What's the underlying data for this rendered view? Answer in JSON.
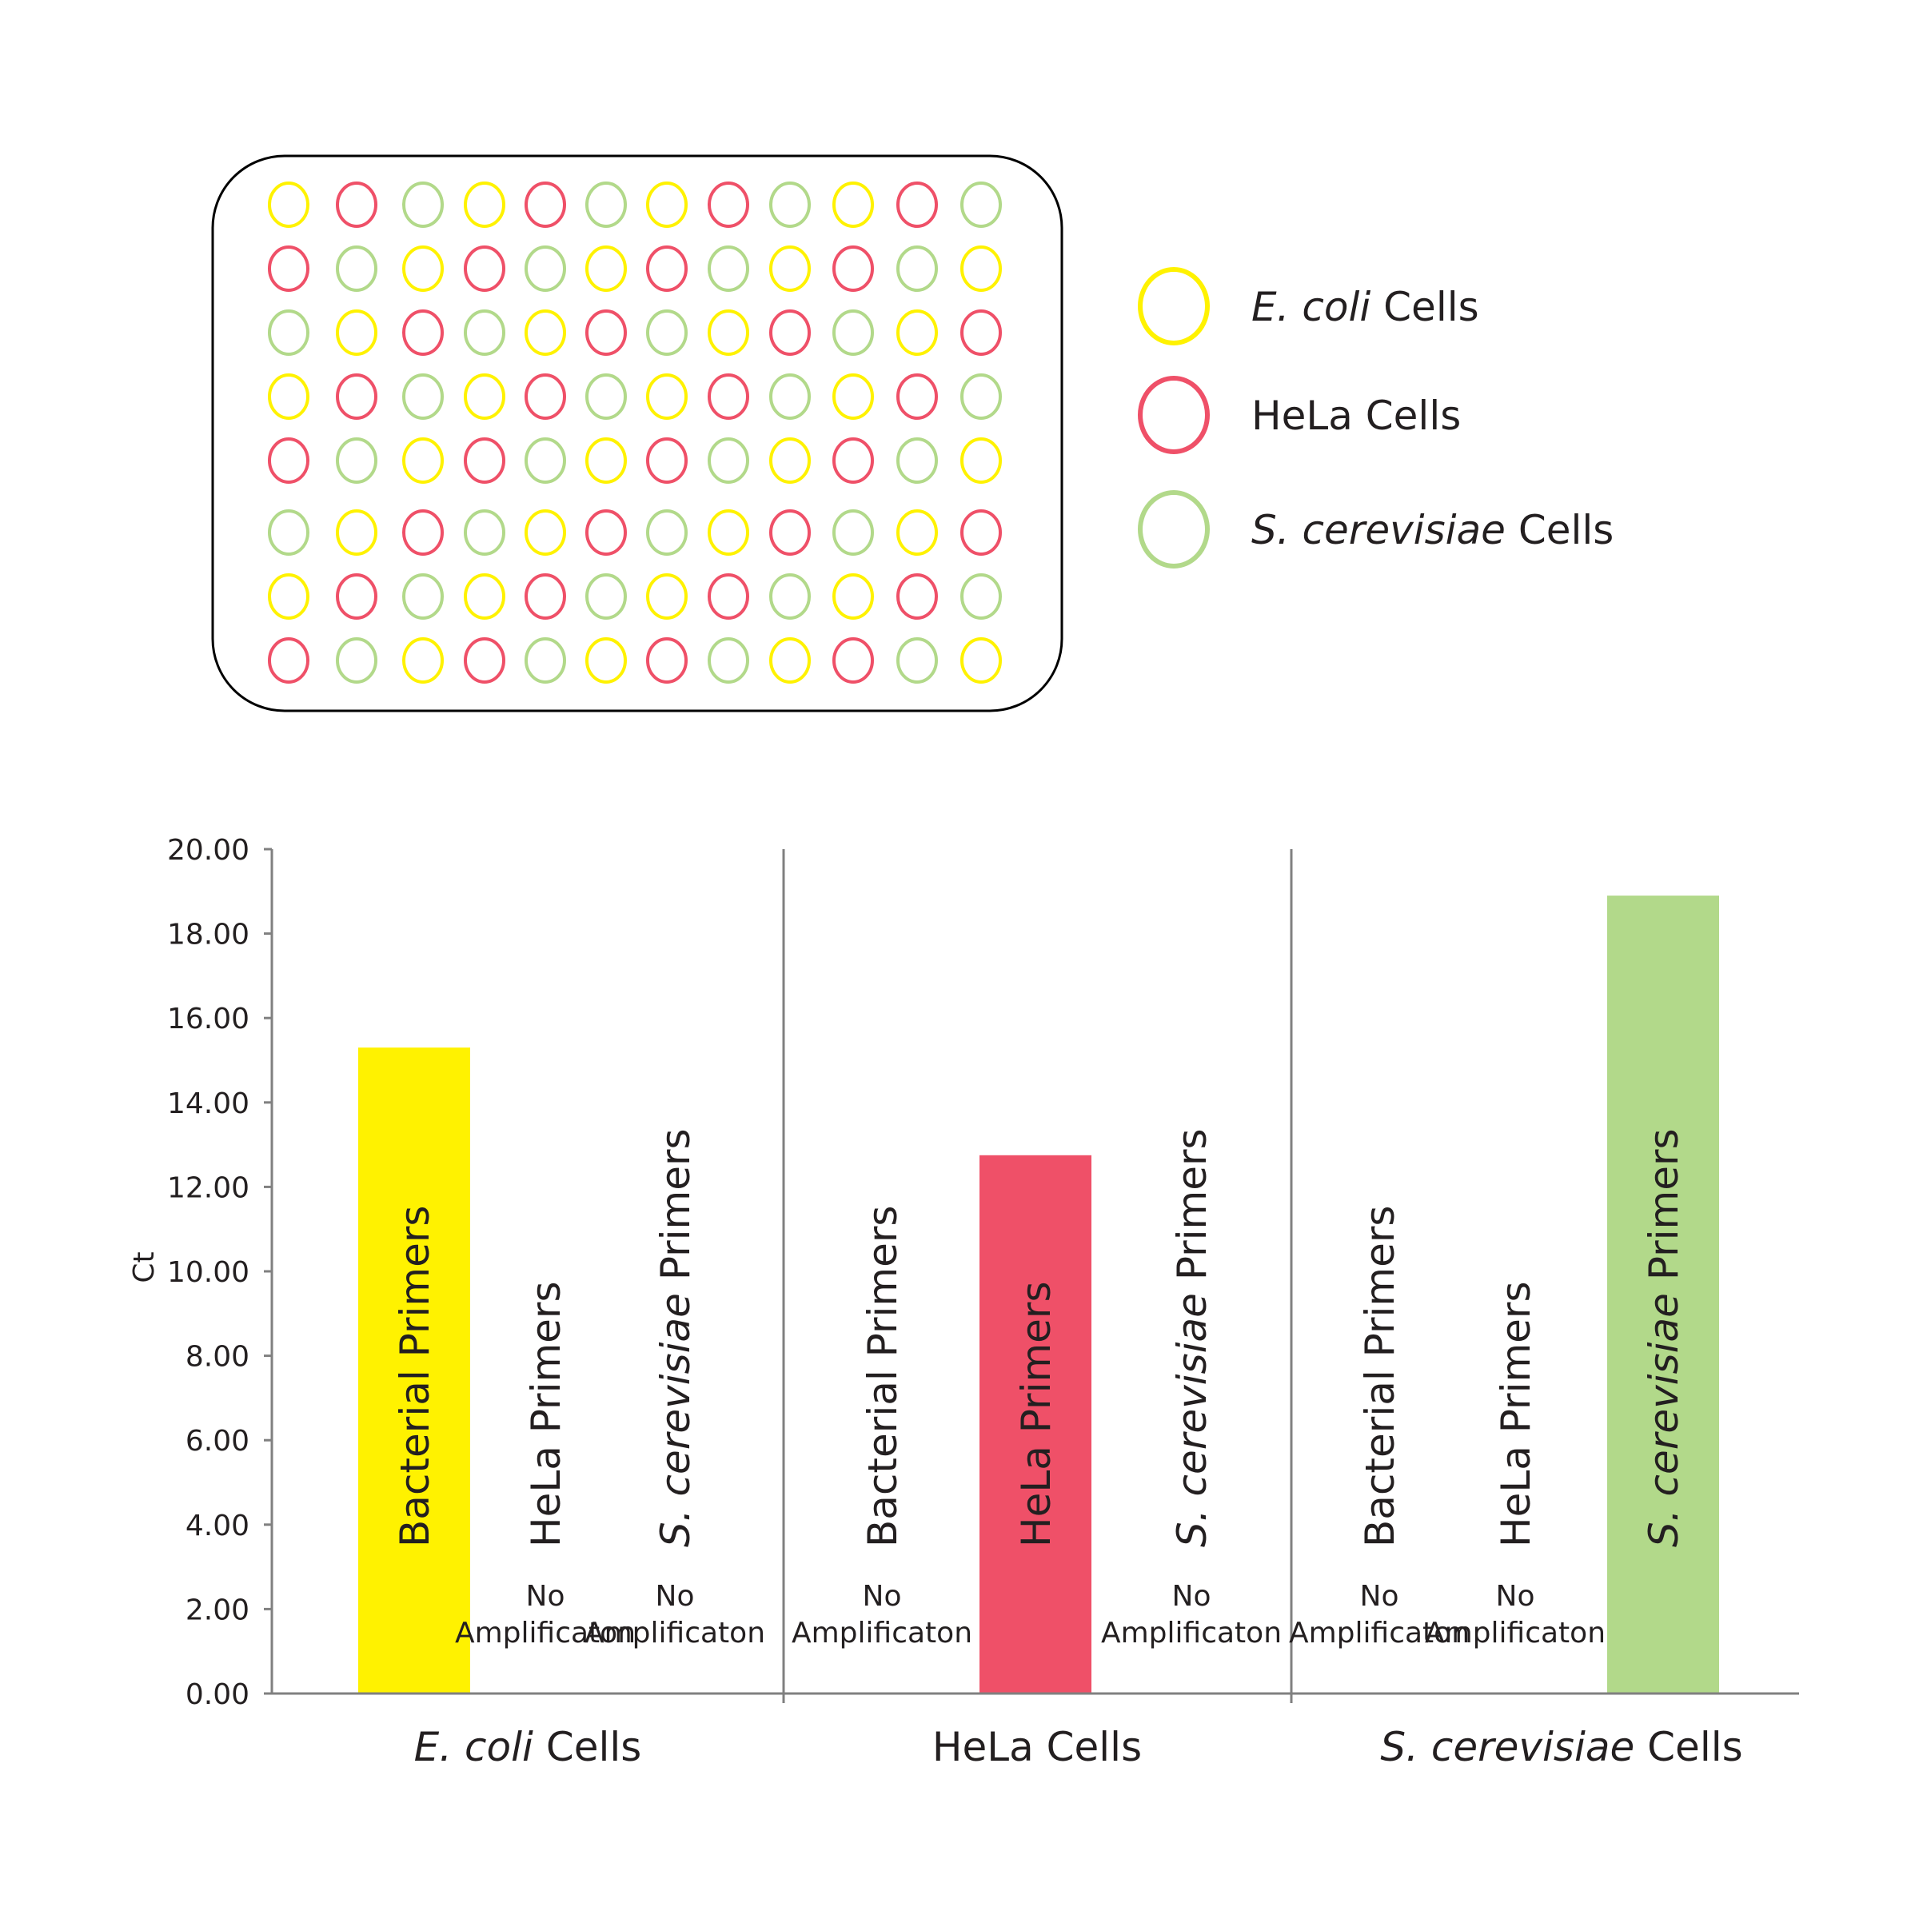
{
  "plate": {
    "rows": [
      [
        "ecoli",
        "hela",
        "scer",
        "ecoli",
        "hela",
        "scer",
        "ecoli",
        "hela",
        "scer",
        "ecoli",
        "hela",
        "scer"
      ],
      [
        "hela",
        "scer",
        "ecoli",
        "hela",
        "scer",
        "ecoli",
        "hela",
        "scer",
        "ecoli",
        "hela",
        "scer",
        "ecoli"
      ],
      [
        "scer",
        "ecoli",
        "hela",
        "scer",
        "ecoli",
        "hela",
        "scer",
        "ecoli",
        "hela",
        "scer",
        "ecoli",
        "hela"
      ],
      [
        "ecoli",
        "hela",
        "scer",
        "ecoli",
        "hela",
        "scer",
        "ecoli",
        "hela",
        "scer",
        "ecoli",
        "hela",
        "scer"
      ],
      [
        "hela",
        "scer",
        "ecoli",
        "hela",
        "scer",
        "ecoli",
        "hela",
        "scer",
        "ecoli",
        "hela",
        "scer",
        "ecoli"
      ],
      [
        "scer",
        "ecoli",
        "hela",
        "scer",
        "ecoli",
        "hela",
        "scer",
        "ecoli",
        "hela",
        "scer",
        "ecoli",
        "hela"
      ],
      [
        "ecoli",
        "hela",
        "scer",
        "ecoli",
        "hela",
        "scer",
        "ecoli",
        "hela",
        "scer",
        "ecoli",
        "hela",
        "scer"
      ],
      [
        "hela",
        "scer",
        "ecoli",
        "hela",
        "scer",
        "ecoli",
        "hela",
        "scer",
        "ecoli",
        "hela",
        "scer",
        "ecoli"
      ]
    ]
  },
  "colors": {
    "ecoli": "#fff200",
    "hela": "#ef5068",
    "scer": "#b2d98a",
    "axis": "#808080",
    "text": "#231f20"
  },
  "legend": [
    {
      "key": "ecoli",
      "italic": "E. coli",
      "rest": " Cells"
    },
    {
      "key": "hela",
      "italic": "",
      "rest": "HeLa Cells"
    },
    {
      "key": "scer",
      "italic": "S. cerevisiae",
      "rest": " Cells"
    }
  ],
  "chart_data": {
    "type": "bar",
    "ylabel": "Ct",
    "ylim": [
      0,
      20
    ],
    "yticks": [
      "0.00",
      "2.00",
      "4.00",
      "6.00",
      "8.00",
      "10.00",
      "12.00",
      "14.00",
      "16.00",
      "18.00",
      "20.00"
    ],
    "no_amp_label": [
      "No",
      "Amplificaton"
    ],
    "groups": [
      {
        "label_italic": "E. coli",
        "label_rest": " Cells",
        "bars": [
          {
            "italic": "",
            "rest": "Bacterial Primers",
            "value": 15.3,
            "color": "ecoli",
            "amplified": true
          },
          {
            "italic": "",
            "rest": "HeLa Primers",
            "value": null,
            "color": "hela",
            "amplified": false
          },
          {
            "italic": "S. cerevisiae",
            "rest": " Primers",
            "value": null,
            "color": "scer",
            "amplified": false
          }
        ]
      },
      {
        "label_italic": "",
        "label_rest": "HeLa Cells",
        "bars": [
          {
            "italic": "",
            "rest": "Bacterial Primers",
            "value": null,
            "color": "ecoli",
            "amplified": false
          },
          {
            "italic": "",
            "rest": "HeLa Primers",
            "value": 12.75,
            "color": "hela",
            "amplified": true
          },
          {
            "italic": "S. cerevisiae",
            "rest": " Primers",
            "value": null,
            "color": "scer",
            "amplified": false
          }
        ]
      },
      {
        "label_italic": "S. cerevisiae",
        "label_rest": " Cells",
        "bars": [
          {
            "italic": "",
            "rest": "Bacterial  Primers",
            "value": null,
            "color": "ecoli",
            "amplified": false
          },
          {
            "italic": "",
            "rest": "HeLa Primers",
            "value": null,
            "color": "hela",
            "amplified": false
          },
          {
            "italic": "S. cerevisiae",
            "rest": " Primers",
            "value": 18.9,
            "color": "scer",
            "amplified": true
          }
        ]
      }
    ]
  }
}
